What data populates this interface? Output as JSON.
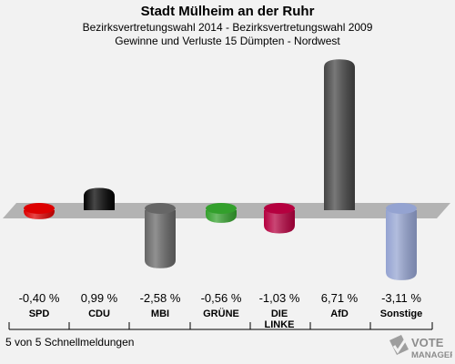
{
  "chart_data": {
    "type": "bar",
    "title": "Stadt Mülheim an der Ruhr",
    "subtitle": "Bezirksvertretungswahl 2014 - Bezirksvertretungswahl 2009",
    "subtitle2": "Gewinne und Verluste 15 Dümpten - Nordwest",
    "categories": [
      "SPD",
      "CDU",
      "MBI",
      "GRÜNE",
      "DIE LINKE",
      "AfD",
      "Sonstige"
    ],
    "values": [
      -0.4,
      0.99,
      -2.58,
      -0.56,
      -1.03,
      6.71,
      -3.11
    ],
    "value_labels": [
      "-0,40 %",
      "0,99 %",
      "-2,58 %",
      "-0,56 %",
      "-1,03 %",
      "6,71 %",
      "-3,11 %"
    ],
    "colors": [
      "#dd0000",
      "#000000",
      "#666666",
      "#33a02c",
      "#b5003f",
      "#444444",
      "#94a3d1"
    ],
    "ylim": [
      -3.5,
      7.0
    ]
  },
  "footnote": "5 von 5 Schnellmeldungen",
  "logo": {
    "line1": "VOTE",
    "line2": "MANAGER"
  }
}
